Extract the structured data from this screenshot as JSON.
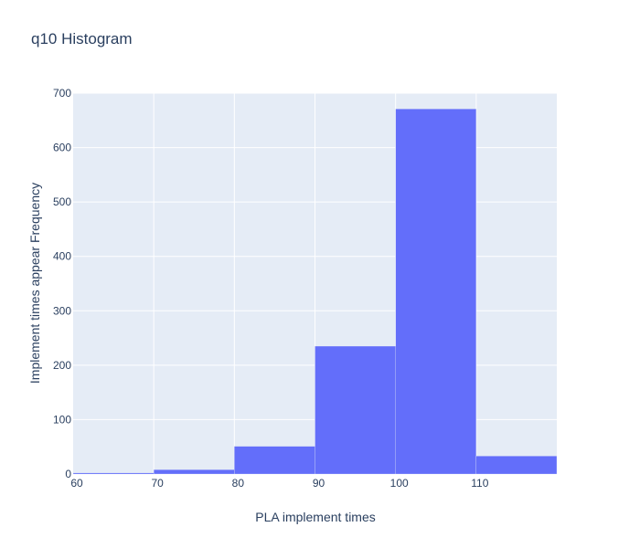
{
  "chart_data": {
    "type": "bar",
    "title": "q10 Histogram",
    "xlabel": "PLA implement times",
    "ylabel": "Implement times appear Frequency",
    "bins": [
      {
        "start": 60,
        "end": 70,
        "count": 2
      },
      {
        "start": 70,
        "end": 80,
        "count": 8
      },
      {
        "start": 80,
        "end": 90,
        "count": 51
      },
      {
        "start": 90,
        "end": 100,
        "count": 235
      },
      {
        "start": 100,
        "end": 110,
        "count": 671
      },
      {
        "start": 110,
        "end": 120,
        "count": 33
      }
    ],
    "xlim": [
      60,
      120
    ],
    "ylim": [
      0,
      700
    ],
    "xticks": [
      60,
      70,
      80,
      90,
      100,
      110
    ],
    "yticks": [
      0,
      100,
      200,
      300,
      400,
      500,
      600,
      700
    ],
    "grid": true,
    "colors": {
      "bar": "#636efa",
      "plot_bg": "#e5ecf6",
      "grid": "#ffffff",
      "text": "#2a3f5f"
    }
  }
}
